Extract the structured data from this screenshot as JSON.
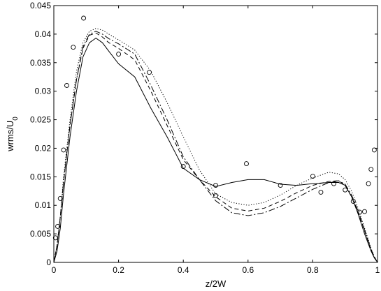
{
  "chart_data": {
    "type": "line",
    "title": "",
    "xlabel": "z/2W",
    "ylabel": "wrms/U",
    "ylabel_sub": "0",
    "xlim": [
      0,
      1
    ],
    "ylim": [
      0,
      0.045
    ],
    "xticks": [
      0,
      0.2,
      0.4,
      0.6,
      0.8,
      1
    ],
    "xtick_labels": [
      "0",
      "0.2",
      "0.4",
      "0.6",
      "0.8",
      "1"
    ],
    "yticks": [
      0,
      0.005,
      0.01,
      0.015,
      0.02,
      0.025,
      0.03,
      0.035,
      0.04,
      0.045
    ],
    "ytick_labels": [
      "0",
      "0.005",
      "0.01",
      "0.015",
      "0.02",
      "0.025",
      "0.03",
      "0.035",
      "0.04",
      "0.045"
    ],
    "grid": false,
    "legend": "none",
    "series": [
      {
        "style": "solid",
        "x": [
          0,
          0.01,
          0.02,
          0.03,
          0.05,
          0.07,
          0.09,
          0.11,
          0.13,
          0.15,
          0.17,
          0.2,
          0.25,
          0.3,
          0.35,
          0.4,
          0.45,
          0.5,
          0.55,
          0.6,
          0.65,
          0.7,
          0.75,
          0.8,
          0.85,
          0.88,
          0.9,
          0.92,
          0.94,
          0.96,
          0.98,
          0.99,
          1.0
        ],
        "y": [
          0,
          0.002,
          0.006,
          0.012,
          0.022,
          0.03,
          0.036,
          0.0385,
          0.0393,
          0.0385,
          0.037,
          0.0348,
          0.0325,
          0.027,
          0.022,
          0.0165,
          0.0145,
          0.0133,
          0.014,
          0.0145,
          0.0145,
          0.0137,
          0.0135,
          0.0138,
          0.014,
          0.014,
          0.0135,
          0.0115,
          0.0085,
          0.005,
          0.002,
          0.0008,
          0
        ]
      },
      {
        "style": "dashed",
        "x": [
          0,
          0.01,
          0.02,
          0.03,
          0.05,
          0.07,
          0.09,
          0.11,
          0.13,
          0.15,
          0.17,
          0.2,
          0.25,
          0.3,
          0.35,
          0.4,
          0.45,
          0.5,
          0.55,
          0.6,
          0.65,
          0.7,
          0.75,
          0.8,
          0.85,
          0.88,
          0.9,
          0.92,
          0.94,
          0.96,
          0.98,
          0.99,
          1.0
        ],
        "y": [
          0,
          0.003,
          0.008,
          0.014,
          0.024,
          0.032,
          0.0375,
          0.0398,
          0.0402,
          0.0395,
          0.0385,
          0.0375,
          0.0355,
          0.03,
          0.024,
          0.018,
          0.0145,
          0.0115,
          0.0095,
          0.009,
          0.0095,
          0.0107,
          0.0122,
          0.0135,
          0.0142,
          0.0143,
          0.0135,
          0.0115,
          0.0088,
          0.0055,
          0.0022,
          0.001,
          0
        ]
      },
      {
        "style": "dashdot",
        "x": [
          0,
          0.01,
          0.02,
          0.03,
          0.05,
          0.07,
          0.09,
          0.11,
          0.13,
          0.15,
          0.17,
          0.2,
          0.25,
          0.3,
          0.35,
          0.4,
          0.45,
          0.5,
          0.55,
          0.6,
          0.65,
          0.7,
          0.75,
          0.8,
          0.85,
          0.88,
          0.9,
          0.92,
          0.94,
          0.96,
          0.98,
          0.99,
          1.0
        ],
        "y": [
          0,
          0.003,
          0.008,
          0.014,
          0.024,
          0.032,
          0.0378,
          0.04,
          0.0405,
          0.04,
          0.0392,
          0.0383,
          0.0365,
          0.031,
          0.025,
          0.0185,
          0.0145,
          0.0108,
          0.0087,
          0.0082,
          0.0087,
          0.0098,
          0.0113,
          0.0128,
          0.014,
          0.0143,
          0.0137,
          0.0118,
          0.009,
          0.0057,
          0.0023,
          0.001,
          0
        ]
      },
      {
        "style": "dotted",
        "x": [
          0,
          0.01,
          0.02,
          0.03,
          0.05,
          0.07,
          0.09,
          0.11,
          0.13,
          0.15,
          0.17,
          0.2,
          0.25,
          0.3,
          0.35,
          0.4,
          0.45,
          0.5,
          0.55,
          0.6,
          0.65,
          0.7,
          0.75,
          0.8,
          0.85,
          0.88,
          0.9,
          0.92,
          0.94,
          0.96,
          0.98,
          0.99,
          1.0
        ],
        "y": [
          0,
          0.003,
          0.008,
          0.015,
          0.025,
          0.0335,
          0.0385,
          0.0405,
          0.041,
          0.0407,
          0.04,
          0.039,
          0.0372,
          0.0335,
          0.028,
          0.022,
          0.0162,
          0.012,
          0.0105,
          0.01,
          0.0105,
          0.0118,
          0.0135,
          0.0148,
          0.0158,
          0.0155,
          0.0145,
          0.0125,
          0.0095,
          0.006,
          0.0025,
          0.001,
          0
        ]
      }
    ],
    "scatter": {
      "marker": "circle",
      "x": [
        0.005,
        0.012,
        0.02,
        0.03,
        0.04,
        0.06,
        0.092,
        0.2,
        0.295,
        0.4,
        0.5,
        0.5,
        0.595,
        0.7,
        0.8,
        0.825,
        0.865,
        0.9,
        0.925,
        0.945,
        0.96,
        0.972,
        0.98,
        0.99
      ],
      "y": [
        0.0043,
        0.0063,
        0.0112,
        0.0197,
        0.031,
        0.0377,
        0.0428,
        0.0365,
        0.0333,
        0.0168,
        0.0135,
        0.0117,
        0.0173,
        0.0135,
        0.0151,
        0.0123,
        0.0138,
        0.0127,
        0.0107,
        0.0088,
        0.0089,
        0.0138,
        0.0163,
        0.0197
      ]
    }
  }
}
